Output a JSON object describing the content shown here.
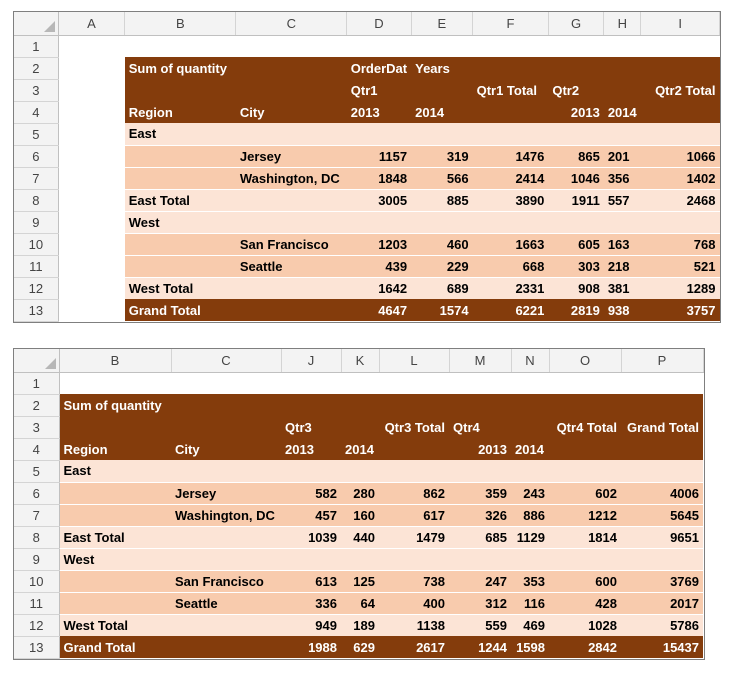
{
  "sheet1": {
    "columns": [
      "A",
      "B",
      "C",
      "D",
      "E",
      "F",
      "G",
      "H",
      "I"
    ],
    "rows": [
      "1",
      "2",
      "3",
      "4",
      "5",
      "6",
      "7",
      "8",
      "9",
      "10",
      "11",
      "12",
      "13"
    ],
    "title": "Sum of quantity",
    "col_header_label": "OrderDat",
    "years_label": "Years",
    "qtr_a": "Qtr1",
    "qtr_a_total": "Qtr1 Total",
    "qtr_b": "Qtr2",
    "qtr_b_total": "Qtr2 Total",
    "year1": "2013",
    "year2": "2014",
    "region_label": "Region",
    "city_label": "City",
    "east": "East",
    "west": "West",
    "east_total_label": "East Total",
    "west_total_label": "West Total",
    "grand_total_label": "Grand Total",
    "cities": {
      "jersey": "Jersey",
      "washington": "Washington, DC",
      "sanfrancisco": "San Francisco",
      "seattle": "Seattle"
    },
    "values": {
      "jersey": [
        "1157",
        "319",
        "1476",
        "865",
        "201",
        "1066"
      ],
      "washington": [
        "1848",
        "566",
        "2414",
        "1046",
        "356",
        "1402"
      ],
      "east_total": [
        "3005",
        "885",
        "3890",
        "1911",
        "557",
        "2468"
      ],
      "sanfrancisco": [
        "1203",
        "460",
        "1663",
        "605",
        "163",
        "768"
      ],
      "seattle": [
        "439",
        "229",
        "668",
        "303",
        "218",
        "521"
      ],
      "west_total": [
        "1642",
        "689",
        "2331",
        "908",
        "381",
        "1289"
      ],
      "grand_total": [
        "4647",
        "1574",
        "6221",
        "2819",
        "938",
        "3757"
      ]
    }
  },
  "sheet2": {
    "columns": [
      "B",
      "C",
      "J",
      "K",
      "L",
      "M",
      "N",
      "O",
      "P"
    ],
    "rows": [
      "1",
      "2",
      "3",
      "4",
      "5",
      "6",
      "7",
      "8",
      "9",
      "10",
      "11",
      "12",
      "13"
    ],
    "title": "Sum of quantity",
    "qtr_a": "Qtr3",
    "qtr_a_total": "Qtr3 Total",
    "qtr_b": "Qtr4",
    "qtr_b_total": "Qtr4 Total",
    "grand_total_header": "Grand Total",
    "year1": "2013",
    "year2": "2014",
    "region_label": "Region",
    "city_label": "City",
    "east": "East",
    "west": "West",
    "east_total_label": "East Total",
    "west_total_label": "West Total",
    "grand_total_label": "Grand Total",
    "cities": {
      "jersey": "Jersey",
      "washington": "Washington, DC",
      "sanfrancisco": "San Francisco",
      "seattle": "Seattle"
    },
    "values": {
      "jersey": [
        "582",
        "280",
        "862",
        "359",
        "243",
        "602",
        "4006"
      ],
      "washington": [
        "457",
        "160",
        "617",
        "326",
        "886",
        "1212",
        "5645"
      ],
      "east_total": [
        "1039",
        "440",
        "1479",
        "685",
        "1129",
        "1814",
        "9651"
      ],
      "sanfrancisco": [
        "613",
        "125",
        "738",
        "247",
        "353",
        "600",
        "3769"
      ],
      "seattle": [
        "336",
        "64",
        "400",
        "312",
        "116",
        "428",
        "2017"
      ],
      "west_total": [
        "949",
        "189",
        "1138",
        "559",
        "469",
        "1028",
        "5786"
      ],
      "grand_total": [
        "1988",
        "629",
        "2617",
        "1244",
        "1598",
        "2842",
        "15437"
      ]
    }
  }
}
